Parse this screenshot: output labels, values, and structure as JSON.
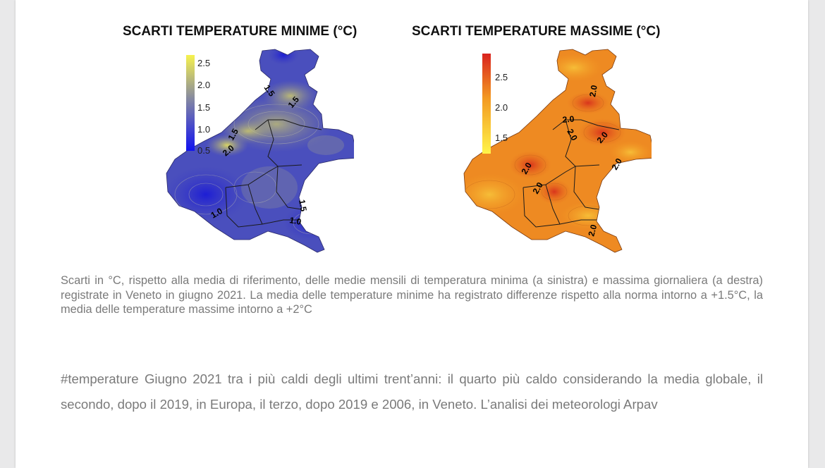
{
  "maps": [
    {
      "title": "SCARTI TEMPERATURE MINIME (°C)",
      "legend_ticks": [
        "2.5",
        "2.0",
        "1.5",
        "1.0",
        "0.5"
      ],
      "colors": {
        "low": "#1f1fe0",
        "mid": "#7b7fa8",
        "high": "#f2ee54"
      },
      "isoline_labels": [
        "1.5",
        "1.5",
        "1.5",
        "2.0",
        "1.0",
        "1.5",
        "1.0"
      ]
    },
    {
      "title": "SCARTI TEMPERATURE MASSIME (°C)",
      "legend_ticks": [
        "2.5",
        "2.0",
        "1.5"
      ],
      "colors": {
        "low": "#fff24a",
        "mid": "#f08a1e",
        "high": "#d9231e"
      },
      "isoline_labels": [
        "2.0",
        "2.0",
        "2.0",
        "2.0",
        "2.0",
        "2.0",
        "2.0",
        "2.0"
      ]
    }
  ],
  "caption": "Scarti in °C, rispetto alla media di riferimento, delle medie mensili di temperatura minima (a sinistra) e massima giornaliera (a destra) registrate in Veneto in giugno 2021. La media delle temperature minime ha registrato differenze rispetto alla norma intorno a +1.5°C, la media delle temperature massime intorno a +2°C",
  "post_text": "#temperature Giugno 2021 tra i più caldi degli ultimi trent’anni: il quarto più caldo considerando la media globale, il secondo, dopo il 2019, in Europa, il terzo, dopo 2019 e 2006, in Veneto. L’analisi dei meteorologi Arpav"
}
